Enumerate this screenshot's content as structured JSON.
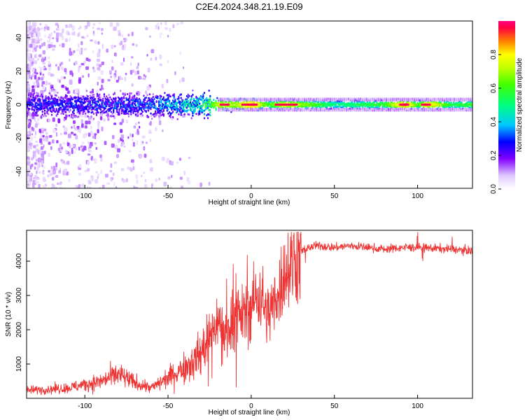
{
  "title": "C2E4.2024.348.21.19.E09",
  "chart_data": [
    {
      "type": "heatmap",
      "xlabel": "Height of straight line (km)",
      "ylabel": "Frequency (Hz)",
      "xlim": [
        -135,
        133
      ],
      "ylim": [
        -50,
        50
      ],
      "x_ticks": [
        -100,
        -50,
        0,
        50,
        100
      ],
      "y_ticks": [
        -40,
        -20,
        0,
        20,
        40
      ],
      "colorbar": {
        "label": "Normalized spectral amplitude",
        "range": [
          0.0,
          1.0
        ],
        "ticks": [
          0.0,
          0.2,
          0.4,
          0.6,
          0.8
        ]
      },
      "ridge": {
        "frequency_hz": 0,
        "description_x": [
          -135,
          -60,
          -30,
          -20,
          -10,
          0,
          10,
          20,
          30,
          50,
          80,
          92,
          100,
          105,
          120,
          133
        ],
        "amplitude": [
          0.25,
          0.3,
          0.45,
          0.75,
          0.7,
          0.9,
          0.6,
          0.85,
          0.7,
          0.5,
          0.6,
          0.95,
          0.6,
          0.9,
          0.55,
          0.6
        ]
      }
    },
    {
      "type": "line",
      "xlabel": "Height of straight line (km)",
      "ylabel": "SNR (10 * v/v)",
      "xlim": [
        -135,
        133
      ],
      "ylim": [
        0,
        4900
      ],
      "x_ticks": [
        -100,
        -50,
        0,
        50,
        100
      ],
      "y_ticks": [
        1000,
        2000,
        3000,
        4000
      ],
      "series": [
        {
          "name": "SNR",
          "color": "#ee3333",
          "x": [
            -135,
            -110,
            -100,
            -90,
            -80,
            -70,
            -60,
            -50,
            -40,
            -30,
            -25,
            -20,
            -15,
            -10,
            -5,
            0,
            5,
            10,
            15,
            20,
            25,
            30,
            35,
            40,
            50,
            60,
            80,
            92,
            100,
            120,
            133
          ],
          "values": [
            230,
            300,
            400,
            500,
            700,
            450,
            300,
            600,
            900,
            1300,
            1800,
            2300,
            1900,
            2500,
            2400,
            2700,
            3100,
            2400,
            3000,
            3600,
            4000,
            4300,
            4400,
            4450,
            4400,
            4450,
            4350,
            4400,
            4400,
            4350,
            4300
          ]
        }
      ]
    }
  ]
}
